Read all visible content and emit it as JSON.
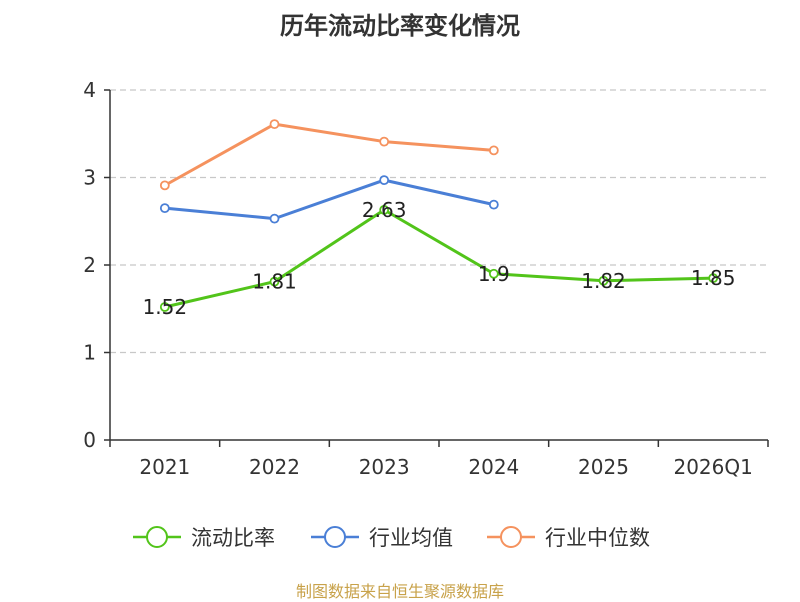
{
  "chart_data": {
    "type": "line",
    "title": "历年流动比率变化情况",
    "categories": [
      "2021",
      "2022",
      "2023",
      "2024",
      "2025",
      "2026Q1"
    ],
    "ylim": [
      0,
      4
    ],
    "yticks": [
      0,
      1,
      2,
      3,
      4
    ],
    "grid": true,
    "legend_position": "bottom",
    "series": [
      {
        "name": "流动比率",
        "color": "#52c41a",
        "values": [
          1.52,
          1.81,
          2.63,
          1.9,
          1.82,
          1.85
        ],
        "labels": [
          "1.52",
          "1.81",
          "2.63",
          "1.9",
          "1.82",
          "1.85"
        ]
      },
      {
        "name": "行业均值",
        "color": "#4a7fd6",
        "values": [
          2.65,
          2.53,
          2.97,
          2.69,
          null,
          null
        ],
        "labels": []
      },
      {
        "name": "行业中位数",
        "color": "#f5925e",
        "values": [
          2.91,
          3.61,
          3.41,
          3.31,
          null,
          null
        ],
        "labels": []
      }
    ]
  },
  "footer": "制图数据来自恒生聚源数据库"
}
